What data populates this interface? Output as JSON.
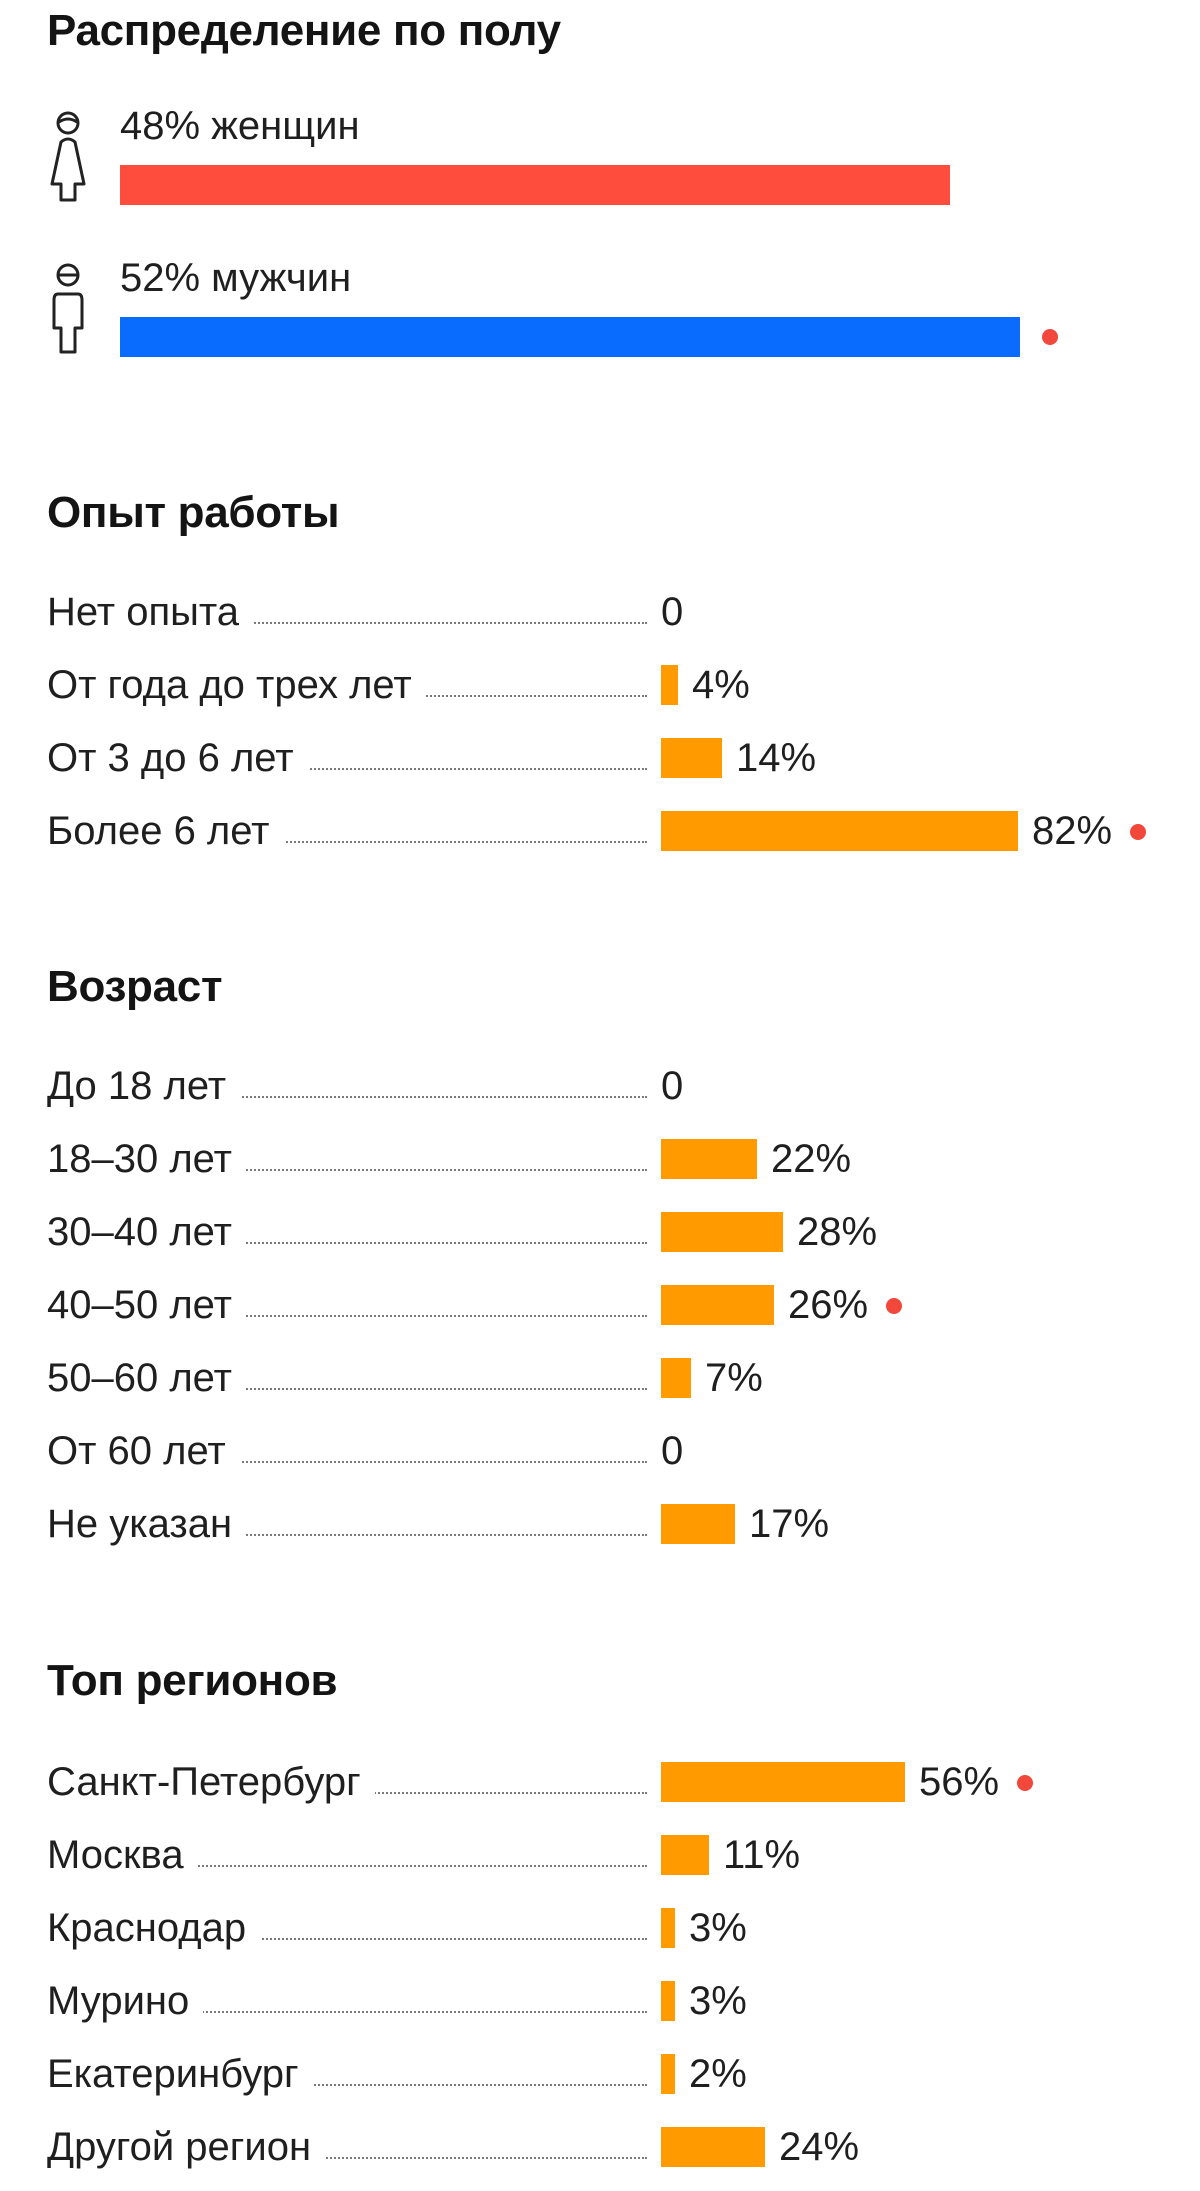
{
  "colors": {
    "female": "#ff4d3d",
    "male": "#0a6cff",
    "bar": "#ff9b00",
    "marker": "#f2473b"
  },
  "gender": {
    "title": "Распределение по полу",
    "female": {
      "icon": "woman-icon",
      "label": "48% женщин",
      "percent": 48
    },
    "male": {
      "icon": "man-icon",
      "label": "52% мужчин",
      "percent": 52,
      "marked": true
    }
  },
  "experience": {
    "title": "Опыт работы",
    "rows": [
      {
        "label": "Нет опыта",
        "value": "0",
        "percent": 0
      },
      {
        "label": "От года до трех лет",
        "value": "4%",
        "percent": 4
      },
      {
        "label": "От 3 до 6 лет",
        "value": "14%",
        "percent": 14
      },
      {
        "label": "Более 6 лет",
        "value": "82%",
        "percent": 82,
        "marked": true
      }
    ]
  },
  "age": {
    "title": "Возраст",
    "rows": [
      {
        "label": "До 18 лет",
        "value": "0",
        "percent": 0
      },
      {
        "label": "18–30 лет",
        "value": "22%",
        "percent": 22
      },
      {
        "label": "30–40 лет",
        "value": "28%",
        "percent": 28
      },
      {
        "label": "40–50 лет",
        "value": "26%",
        "percent": 26,
        "marked": true
      },
      {
        "label": "50–60 лет",
        "value": "7%",
        "percent": 7
      },
      {
        "label": "От 60 лет",
        "value": "0",
        "percent": 0
      },
      {
        "label": "Не указан",
        "value": "17%",
        "percent": 17
      }
    ]
  },
  "regions": {
    "title": "Топ регионов",
    "rows": [
      {
        "label": "Санкт-Петербург",
        "value": "56%",
        "percent": 56,
        "marked": true
      },
      {
        "label": "Москва",
        "value": "11%",
        "percent": 11
      },
      {
        "label": "Краснодар",
        "value": "3%",
        "percent": 3
      },
      {
        "label": "Мурино",
        "value": "3%",
        "percent": 3
      },
      {
        "label": "Екатеринбург",
        "value": "2%",
        "percent": 2
      },
      {
        "label": "Другой регион",
        "value": "24%",
        "percent": 24
      }
    ]
  }
}
